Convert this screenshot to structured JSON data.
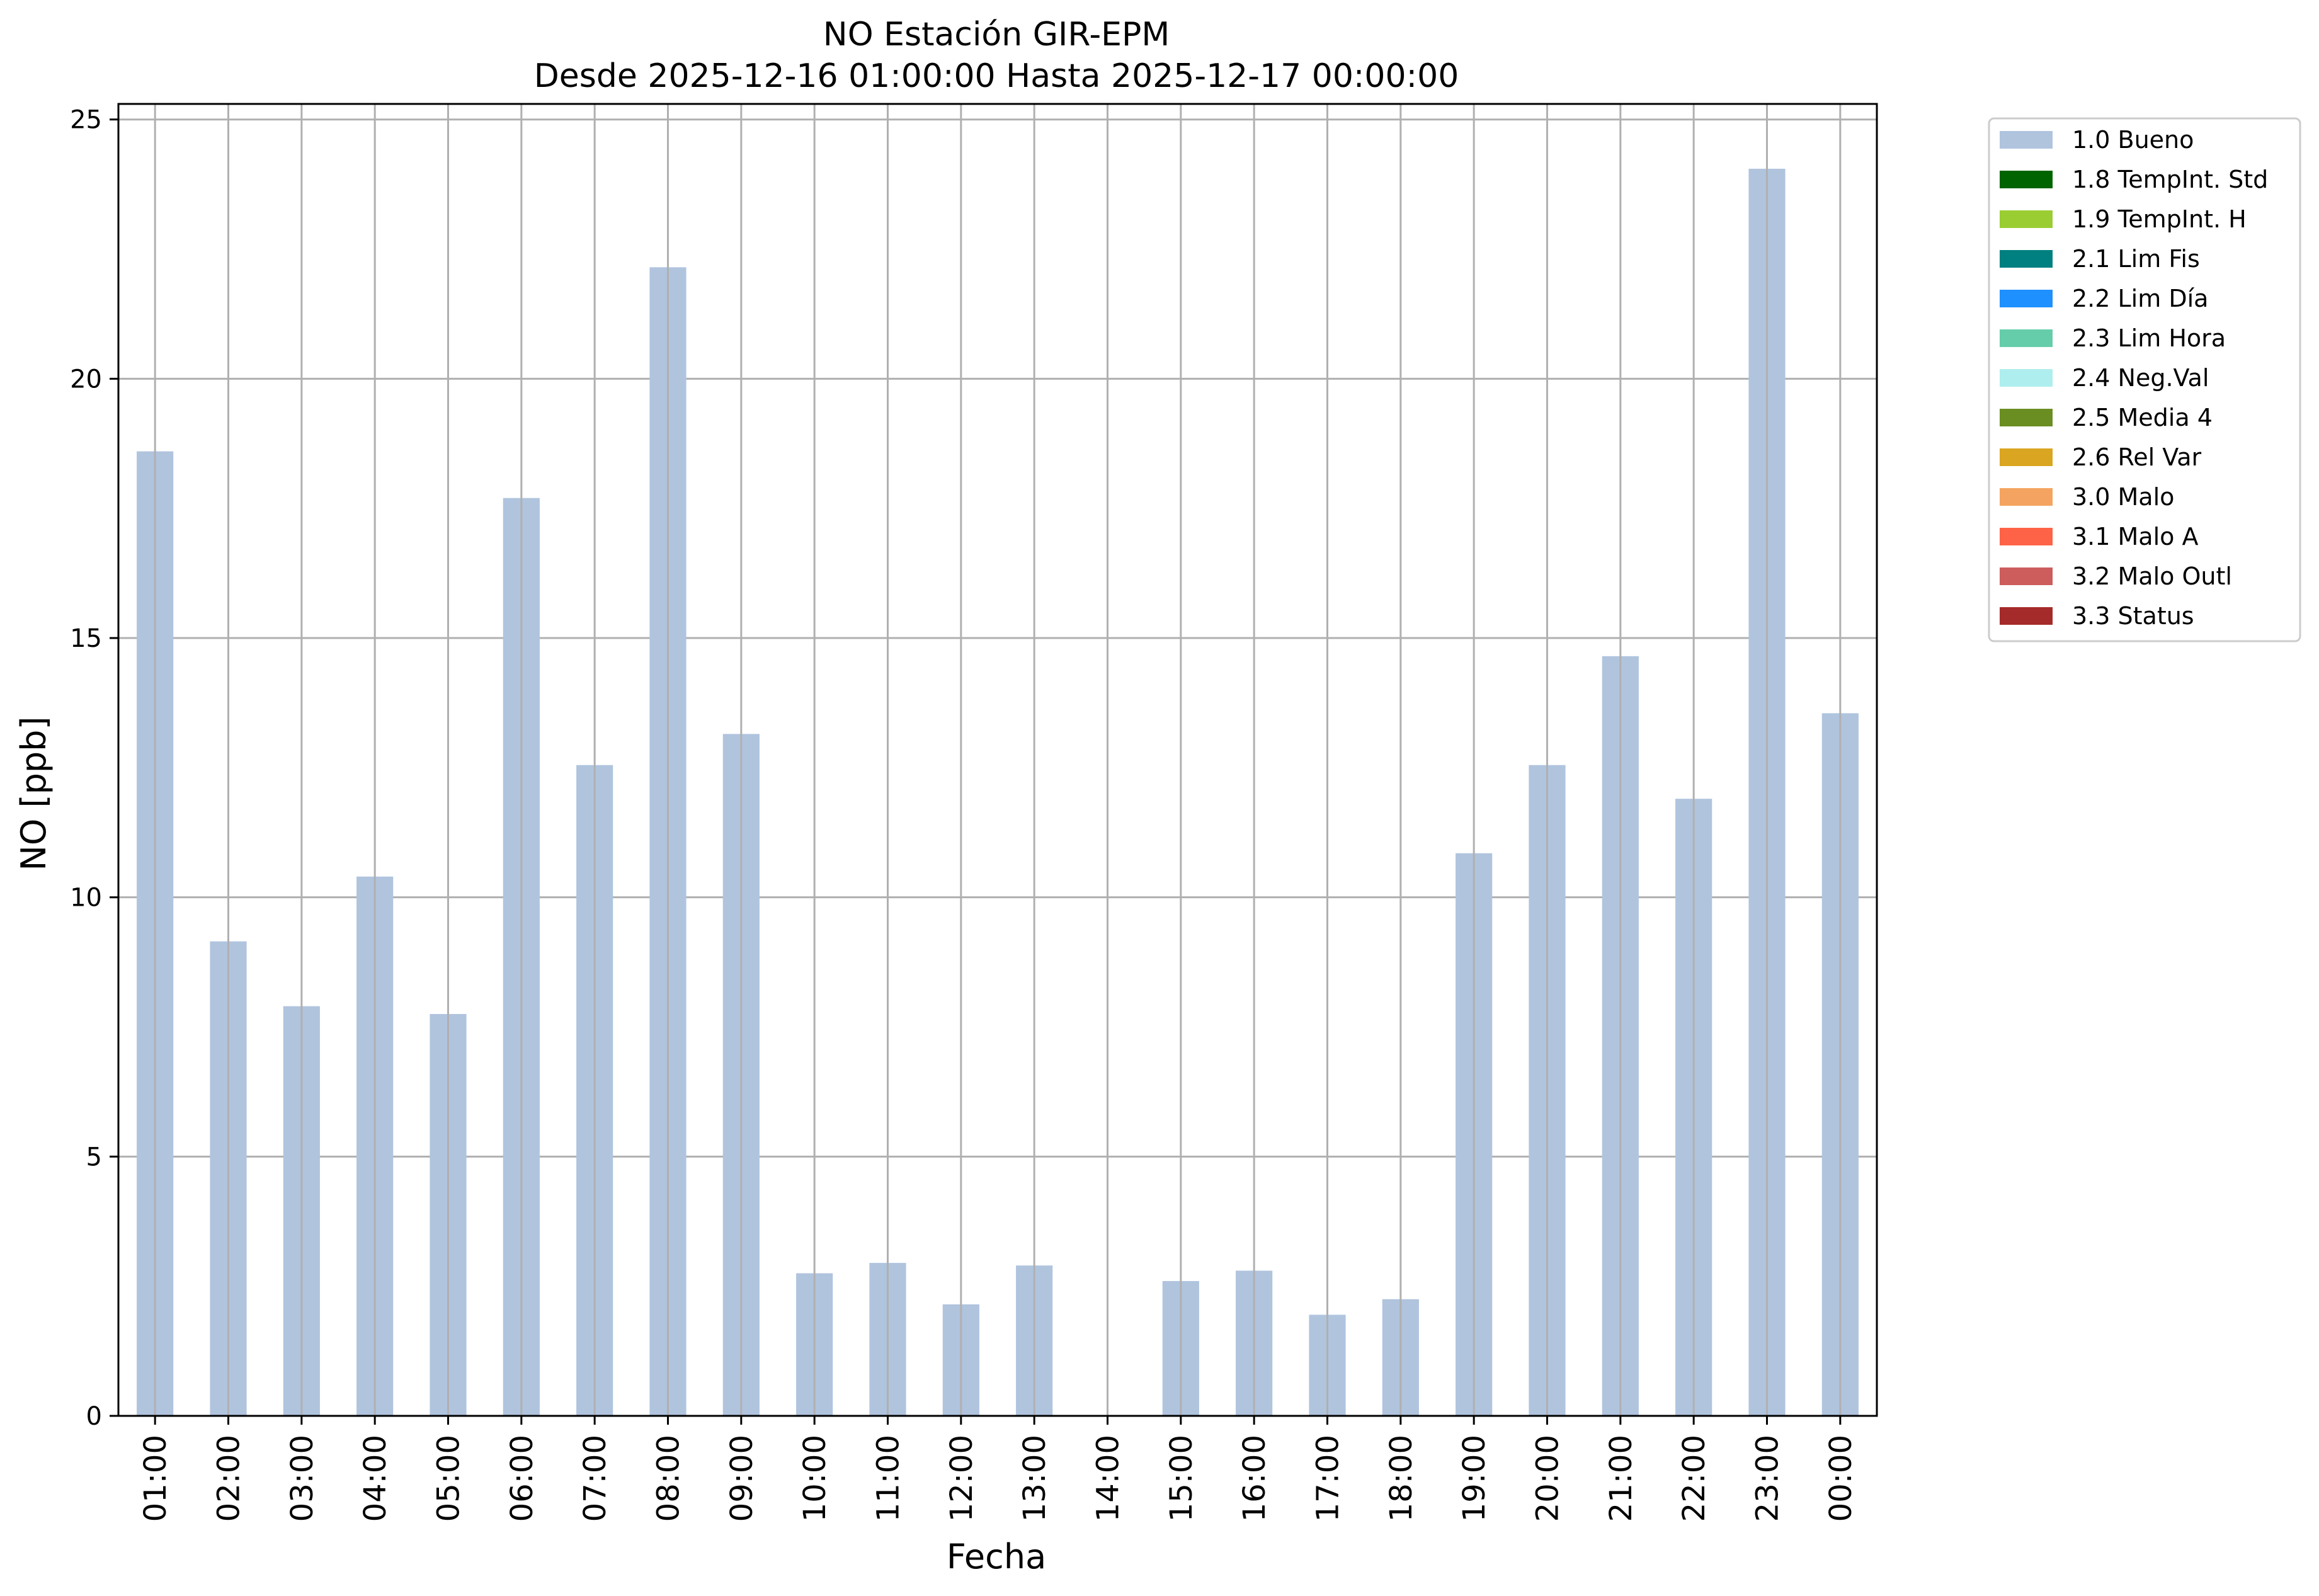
{
  "chart_data": {
    "type": "bar",
    "title": "NO Estación GIR-EPM",
    "subtitle": "Desde 2025-12-16 01:00:00 Hasta 2025-12-17 00:00:00",
    "xlabel": "Fecha",
    "ylabel": "NO [ppb]",
    "ylim": [
      0,
      25.3
    ],
    "yticks": [
      0,
      5,
      10,
      15,
      20,
      25
    ],
    "grid": true,
    "legend_position": "outside-top-right",
    "categories": [
      "01:00",
      "02:00",
      "03:00",
      "04:00",
      "05:00",
      "06:00",
      "07:00",
      "08:00",
      "09:00",
      "10:00",
      "11:00",
      "12:00",
      "13:00",
      "14:00",
      "15:00",
      "16:00",
      "17:00",
      "18:00",
      "19:00",
      "20:00",
      "21:00",
      "22:00",
      "23:00",
      "00:00"
    ],
    "series": [
      {
        "name": "1.0 Bueno",
        "color": "#b0c4de",
        "values": [
          18.6,
          9.15,
          7.9,
          10.4,
          7.75,
          17.7,
          12.55,
          22.15,
          13.15,
          2.75,
          2.95,
          2.15,
          2.9,
          0,
          2.6,
          2.8,
          1.95,
          2.25,
          10.85,
          12.55,
          14.65,
          11.9,
          24.05,
          13.55
        ]
      }
    ],
    "legend": [
      {
        "label": "1.0 Bueno",
        "color": "#b0c4de"
      },
      {
        "label": "1.8 TempInt. Std",
        "color": "#006400"
      },
      {
        "label": "1.9 TempInt. H",
        "color": "#9acd32"
      },
      {
        "label": "2.1 Lim Fis",
        "color": "#008080"
      },
      {
        "label": "2.2 Lim Día",
        "color": "#1e90ff"
      },
      {
        "label": "2.3 Lim Hora",
        "color": "#66cdaa"
      },
      {
        "label": "2.4 Neg.Val",
        "color": "#afeeee"
      },
      {
        "label": "2.5 Media 4",
        "color": "#6b8e23"
      },
      {
        "label": "2.6 Rel Var",
        "color": "#daa520"
      },
      {
        "label": "3.0 Malo",
        "color": "#f4a460"
      },
      {
        "label": "3.1 Malo A",
        "color": "#ff6347"
      },
      {
        "label": "3.2 Malo Outl",
        "color": "#cd5c5c"
      },
      {
        "label": "3.3 Status",
        "color": "#a52a2a"
      }
    ]
  }
}
